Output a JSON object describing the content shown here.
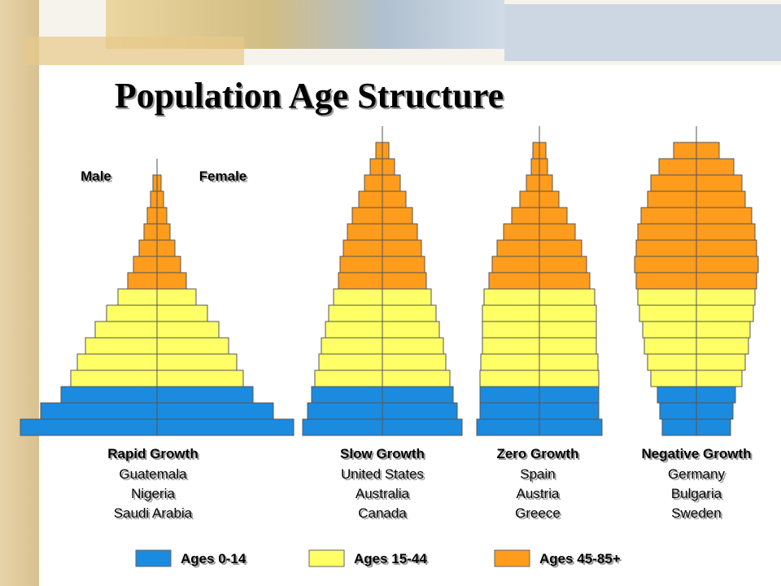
{
  "title": "Population Age Structure",
  "male_label": "Male",
  "female_label": "Female",
  "legend": [
    {
      "name": "Ages 0-14",
      "color": "#1b8be0"
    },
    {
      "name": "Ages 15-44",
      "color": "#ffff66"
    },
    {
      "name": "Ages 45-85+",
      "color": "#ff9c1c"
    }
  ],
  "chart_data": [
    {
      "type": "pyramid",
      "title": "Rapid Growth",
      "countries": [
        "Guatemala",
        "Nigeria",
        "Saudi Arabia"
      ],
      "series": [
        {
          "values": [
            168,
            143,
            118
          ]
        },
        {
          "values": [
            106,
            98,
            88,
            76,
            62,
            48
          ]
        },
        {
          "values": [
            36,
            29,
            22,
            16,
            12,
            8,
            5
          ]
        }
      ]
    },
    {
      "type": "pyramid",
      "title": "Slow Growth",
      "countries": [
        "United States",
        "Australia",
        "Canada"
      ],
      "series": [
        {
          "values": [
            98,
            92,
            87
          ]
        },
        {
          "values": [
            83,
            78,
            75,
            70,
            66,
            60
          ]
        },
        {
          "values": [
            54,
            52,
            48,
            43,
            37,
            29,
            22,
            15,
            8
          ]
        }
      ]
    },
    {
      "type": "pyramid",
      "title": "Zero Growth",
      "countries": [
        "Spain",
        "Austria",
        "Greece"
      ],
      "series": [
        {
          "values": [
            77,
            73,
            73
          ]
        },
        {
          "values": [
            73,
            72,
            70,
            70,
            70,
            68
          ]
        },
        {
          "values": [
            62,
            58,
            52,
            44,
            34,
            24,
            16,
            10,
            8
          ]
        }
      ]
    },
    {
      "type": "pyramid",
      "title": "Negative Growth",
      "countries": [
        "Germany",
        "Bulgaria",
        "Sweden"
      ],
      "series": [
        {
          "values": [
            42,
            45,
            48
          ]
        },
        {
          "values": [
            56,
            60,
            64,
            66,
            70,
            72
          ]
        },
        {
          "values": [
            74,
            76,
            74,
            72,
            68,
            60,
            56,
            46,
            28
          ]
        }
      ]
    }
  ]
}
